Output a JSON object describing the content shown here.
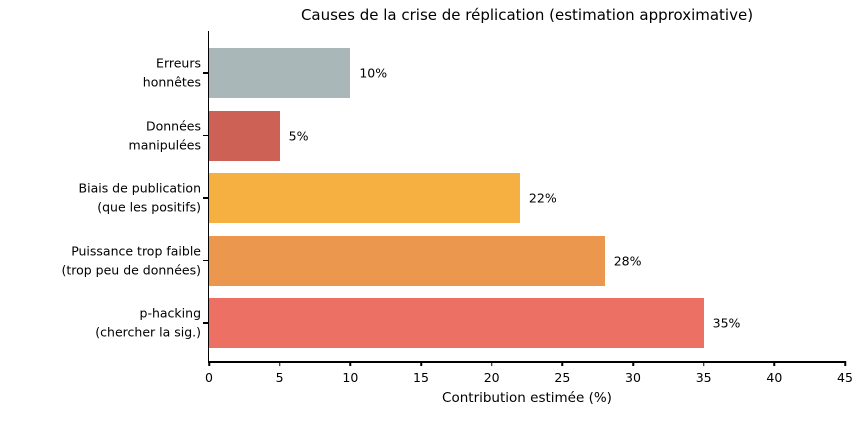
{
  "chart_data": {
    "type": "bar",
    "orientation": "horizontal",
    "title": "Causes de la crise de réplication (estimation approximative)",
    "xlabel": "Contribution estimée (%)",
    "ylabel": "",
    "categories": [
      "Erreurs\nhonnêtes",
      "Données\nmanipulées",
      "Biais de publication\n(que les positifs)",
      "Puissance trop faible\n(trop peu de données)",
      "p-hacking\n(chercher la sig.)"
    ],
    "values": [
      10,
      5,
      22,
      28,
      35
    ],
    "value_labels": [
      "10%",
      "5%",
      "22%",
      "28%",
      "35%"
    ],
    "bar_colors": [
      "#AAB7B8",
      "#CD6155",
      "#F5B041",
      "#EB984E",
      "#EC7063"
    ],
    "xlim": [
      0,
      45
    ],
    "xticks": [
      0,
      5,
      10,
      15,
      20,
      25,
      30,
      35,
      40,
      45
    ],
    "grid": false,
    "legend": null,
    "spine_color": "#000000",
    "background_color": "#ffffff"
  }
}
